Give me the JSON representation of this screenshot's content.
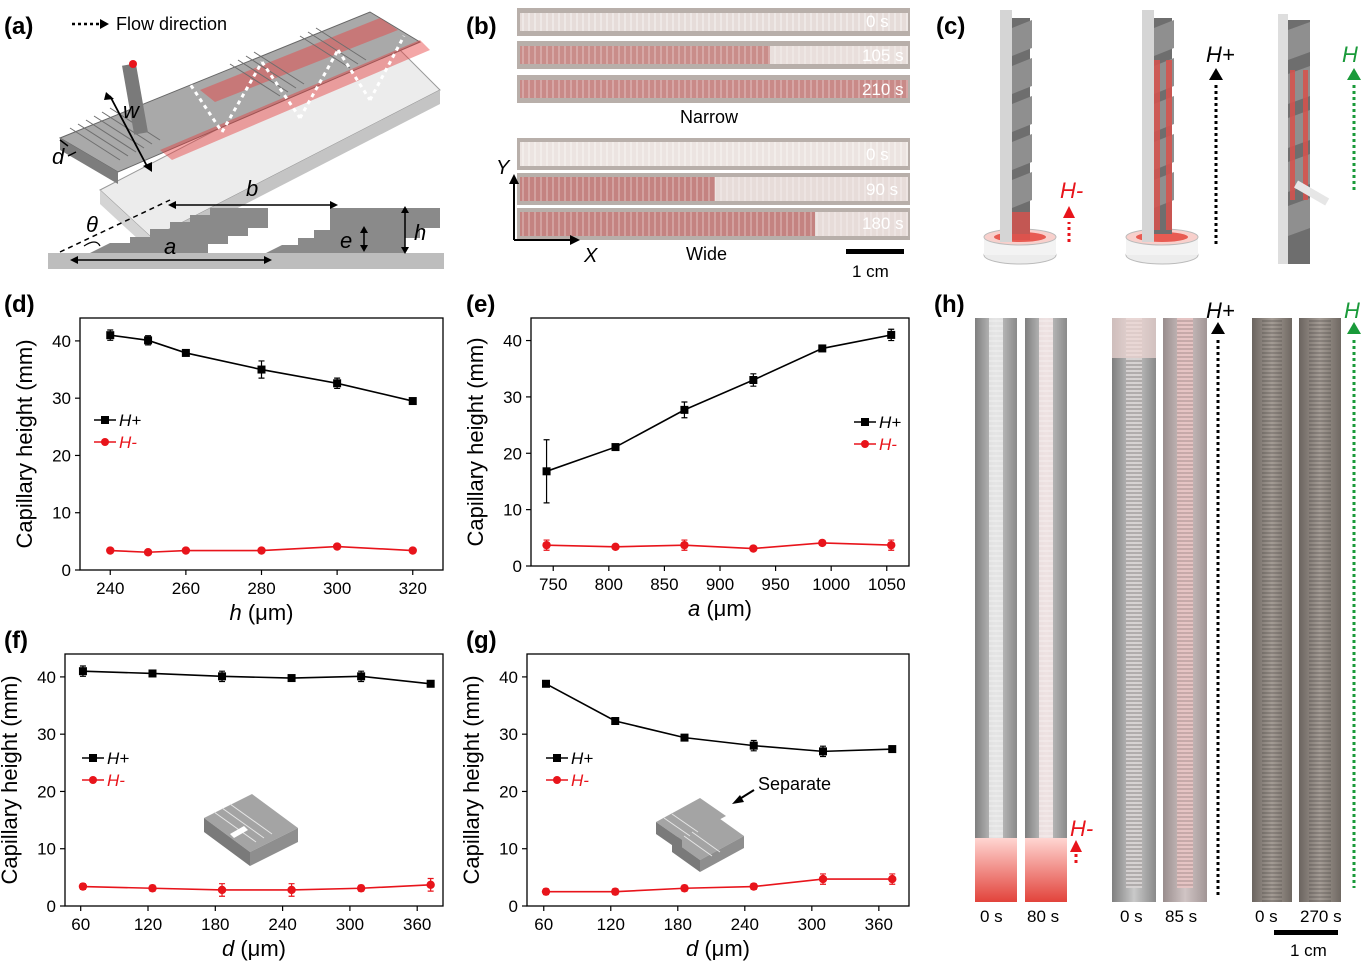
{
  "panels": [
    "(a)",
    "(b)",
    "(c)",
    "(d)",
    "(e)",
    "(f)",
    "(g)",
    "(h)"
  ],
  "panel_a": {
    "flow_label": "Flow direction",
    "dims": {
      "w": "w",
      "d": "d",
      "b": "b",
      "theta": "θ",
      "a": "a",
      "e": "e",
      "h": "h"
    }
  },
  "panel_b": {
    "narrow_times": [
      "0 s",
      "105 s",
      "210 s"
    ],
    "narrow_label": "Narrow",
    "wide_times": [
      "0 s",
      "90 s",
      "180 s"
    ],
    "wide_label": "Wide",
    "axis_y": "Y",
    "axis_x": "X",
    "scale": "1 cm"
  },
  "panel_c": {
    "labels": [
      "H-",
      "H+",
      "H"
    ]
  },
  "panel_h": {
    "arrow_labels": [
      "H-",
      "H+",
      "H"
    ],
    "times": [
      "0 s",
      "80 s",
      "0 s",
      "85 s",
      "0 s",
      "270 s"
    ],
    "scale": "1 cm"
  },
  "colors": {
    "h_plus": "#000000",
    "h_minus": "#e8141b",
    "h_neutral": "#1a9a3a"
  },
  "chart_data": [
    {
      "panel": "(d)",
      "type": "line",
      "xlabel_var": "h",
      "xlabel_unit": "(μm)",
      "ylabel": "Capillary height (mm)",
      "xlim": [
        232,
        328
      ],
      "ylim": [
        0,
        44
      ],
      "xticks": [
        240,
        260,
        280,
        300,
        320
      ],
      "yticks": [
        0,
        10,
        20,
        30,
        40
      ],
      "legend_position": "left",
      "series": [
        {
          "name": "H+",
          "marker": "square",
          "color": "#000000",
          "x": [
            240,
            250,
            260,
            280,
            300,
            320
          ],
          "y": [
            41.0,
            40.1,
            37.9,
            35.0,
            32.6,
            29.5
          ],
          "err": [
            0.9,
            0.8,
            0.4,
            1.5,
            0.9,
            0.3
          ]
        },
        {
          "name": "H-",
          "marker": "circle",
          "color": "#e8141b",
          "x": [
            240,
            250,
            260,
            280,
            300,
            320
          ],
          "y": [
            3.4,
            3.1,
            3.4,
            3.4,
            4.1,
            3.4
          ],
          "err": [
            0,
            0,
            0,
            0,
            0,
            0
          ]
        }
      ]
    },
    {
      "panel": "(e)",
      "type": "line",
      "xlabel_var": "a",
      "xlabel_unit": "(μm)",
      "ylabel": "Capillary height (mm)",
      "xlim": [
        730,
        1070
      ],
      "ylim": [
        0,
        44
      ],
      "xticks": [
        750,
        800,
        850,
        900,
        950,
        1000,
        1050
      ],
      "yticks": [
        0,
        10,
        20,
        30,
        40
      ],
      "legend_position": "right",
      "series": [
        {
          "name": "H+",
          "marker": "square",
          "color": "#000000",
          "x": [
            744,
            806,
            868,
            930,
            992,
            1054
          ],
          "y": [
            16.8,
            21.1,
            27.7,
            33.0,
            38.6,
            41.0
          ],
          "err": [
            5.6,
            0.4,
            1.4,
            1.1,
            0.3,
            1.0
          ]
        },
        {
          "name": "H-",
          "marker": "circle",
          "color": "#e8141b",
          "x": [
            744,
            806,
            868,
            930,
            992,
            1054
          ],
          "y": [
            3.7,
            3.4,
            3.7,
            3.1,
            4.1,
            3.7
          ],
          "err": [
            0.9,
            0.3,
            0.9,
            0.3,
            0.4,
            0.9
          ]
        }
      ]
    },
    {
      "panel": "(f)",
      "type": "line",
      "xlabel_var": "d",
      "xlabel_unit": "(μm)",
      "ylabel": "Capillary height (mm)",
      "xlim": [
        46,
        383
      ],
      "ylim": [
        0,
        44
      ],
      "xticks": [
        60,
        120,
        180,
        240,
        300,
        360
      ],
      "yticks": [
        0,
        10,
        20,
        30,
        40
      ],
      "legend_position": "left",
      "series": [
        {
          "name": "H+",
          "marker": "square",
          "color": "#000000",
          "x": [
            62,
            124,
            186,
            248,
            310,
            372
          ],
          "y": [
            41.0,
            40.6,
            40.1,
            39.8,
            40.1,
            38.8
          ],
          "err": [
            0.9,
            0.5,
            0.9,
            0.5,
            0.9,
            0.5
          ]
        },
        {
          "name": "H-",
          "marker": "circle",
          "color": "#e8141b",
          "x": [
            62,
            124,
            186,
            248,
            310,
            372
          ],
          "y": [
            3.4,
            3.1,
            2.8,
            2.8,
            3.1,
            3.7
          ],
          "err": [
            0.5,
            0.5,
            1.1,
            1.1,
            0.5,
            1.1
          ]
        }
      ]
    },
    {
      "panel": "(g)",
      "type": "line",
      "xlabel_var": "d",
      "xlabel_unit": "(μm)",
      "ylabel": "Capillary height (mm)",
      "xlim": [
        45,
        387
      ],
      "ylim": [
        0,
        44
      ],
      "xticks": [
        60,
        120,
        180,
        240,
        300,
        360
      ],
      "yticks": [
        0,
        10,
        20,
        30,
        40
      ],
      "legend_position": "left",
      "annotation": "Separate",
      "series": [
        {
          "name": "H+",
          "marker": "square",
          "color": "#000000",
          "x": [
            62,
            124,
            186,
            248,
            310,
            372
          ],
          "y": [
            38.8,
            32.3,
            29.4,
            28.0,
            27.0,
            27.4
          ],
          "err": [
            0.4,
            0.4,
            0.4,
            0.9,
            0.9,
            0.4
          ]
        },
        {
          "name": "H-",
          "marker": "circle",
          "color": "#e8141b",
          "x": [
            62,
            124,
            186,
            248,
            310,
            372
          ],
          "y": [
            2.5,
            2.5,
            3.1,
            3.4,
            4.7,
            4.7
          ],
          "err": [
            0.5,
            0.5,
            0.5,
            0.5,
            0.9,
            0.9
          ]
        }
      ]
    }
  ]
}
